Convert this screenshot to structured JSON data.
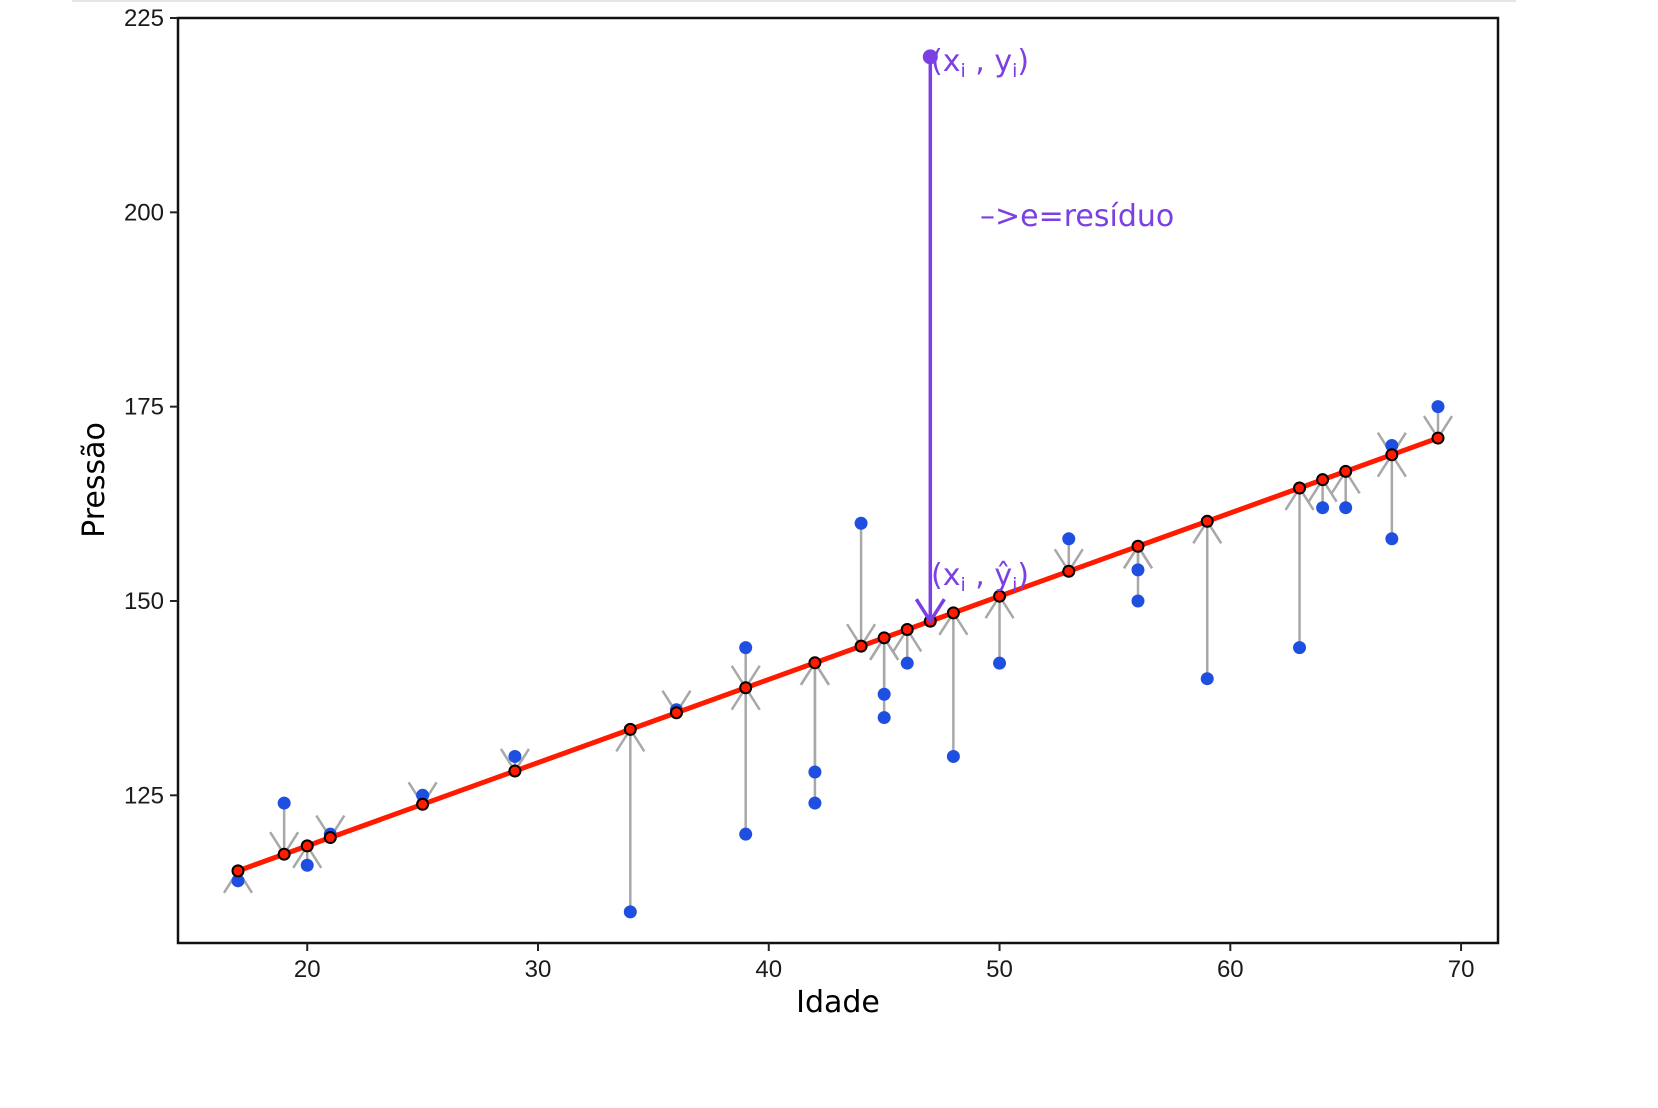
{
  "chart_data": {
    "type": "scatter",
    "xlabel": "Idade",
    "ylabel": "Pressão",
    "xlim": [
      14.4,
      71.6
    ],
    "ylim": [
      106,
      225
    ],
    "x_ticks": [
      20,
      30,
      40,
      50,
      60,
      70
    ],
    "y_ticks": [
      125,
      150,
      175,
      200,
      225
    ],
    "grid": false,
    "regression_line": {
      "intercept": 97.08,
      "slope": 1.0707,
      "color": "#ff1a00",
      "x_range": [
        17,
        69
      ]
    },
    "points": [
      {
        "x": 17,
        "y": 114
      },
      {
        "x": 19,
        "y": 124
      },
      {
        "x": 20,
        "y": 116
      },
      {
        "x": 21,
        "y": 120
      },
      {
        "x": 25,
        "y": 125
      },
      {
        "x": 29,
        "y": 130
      },
      {
        "x": 34,
        "y": 110
      },
      {
        "x": 36,
        "y": 136
      },
      {
        "x": 39,
        "y": 144
      },
      {
        "x": 39,
        "y": 120
      },
      {
        "x": 42,
        "y": 128
      },
      {
        "x": 42,
        "y": 124
      },
      {
        "x": 44,
        "y": 160
      },
      {
        "x": 45,
        "y": 138
      },
      {
        "x": 45,
        "y": 135
      },
      {
        "x": 46,
        "y": 142
      },
      {
        "x": 47,
        "y": 220
      },
      {
        "x": 48,
        "y": 130
      },
      {
        "x": 50,
        "y": 142
      },
      {
        "x": 53,
        "y": 158
      },
      {
        "x": 56,
        "y": 154
      },
      {
        "x": 56,
        "y": 150
      },
      {
        "x": 59,
        "y": 140
      },
      {
        "x": 63,
        "y": 144
      },
      {
        "x": 64,
        "y": 162
      },
      {
        "x": 65,
        "y": 162
      },
      {
        "x": 67,
        "y": 170
      },
      {
        "x": 67,
        "y": 158
      },
      {
        "x": 69,
        "y": 175
      }
    ],
    "highlight_x": 47,
    "point_color": "#1f4fe0",
    "residual_color": "#a8a8a8",
    "highlight_color": "#7b3fe4",
    "annotations": {
      "observed_label": {
        "main": "(x",
        "sub": "i",
        "mid": " , y",
        "sub2": "i",
        "end": ")"
      },
      "fitted_label": {
        "main": "(x",
        "sub": "i",
        "mid": " , ŷ",
        "sub2": "i",
        "end": ")"
      },
      "residual_label": "–>e=resíduo"
    }
  }
}
